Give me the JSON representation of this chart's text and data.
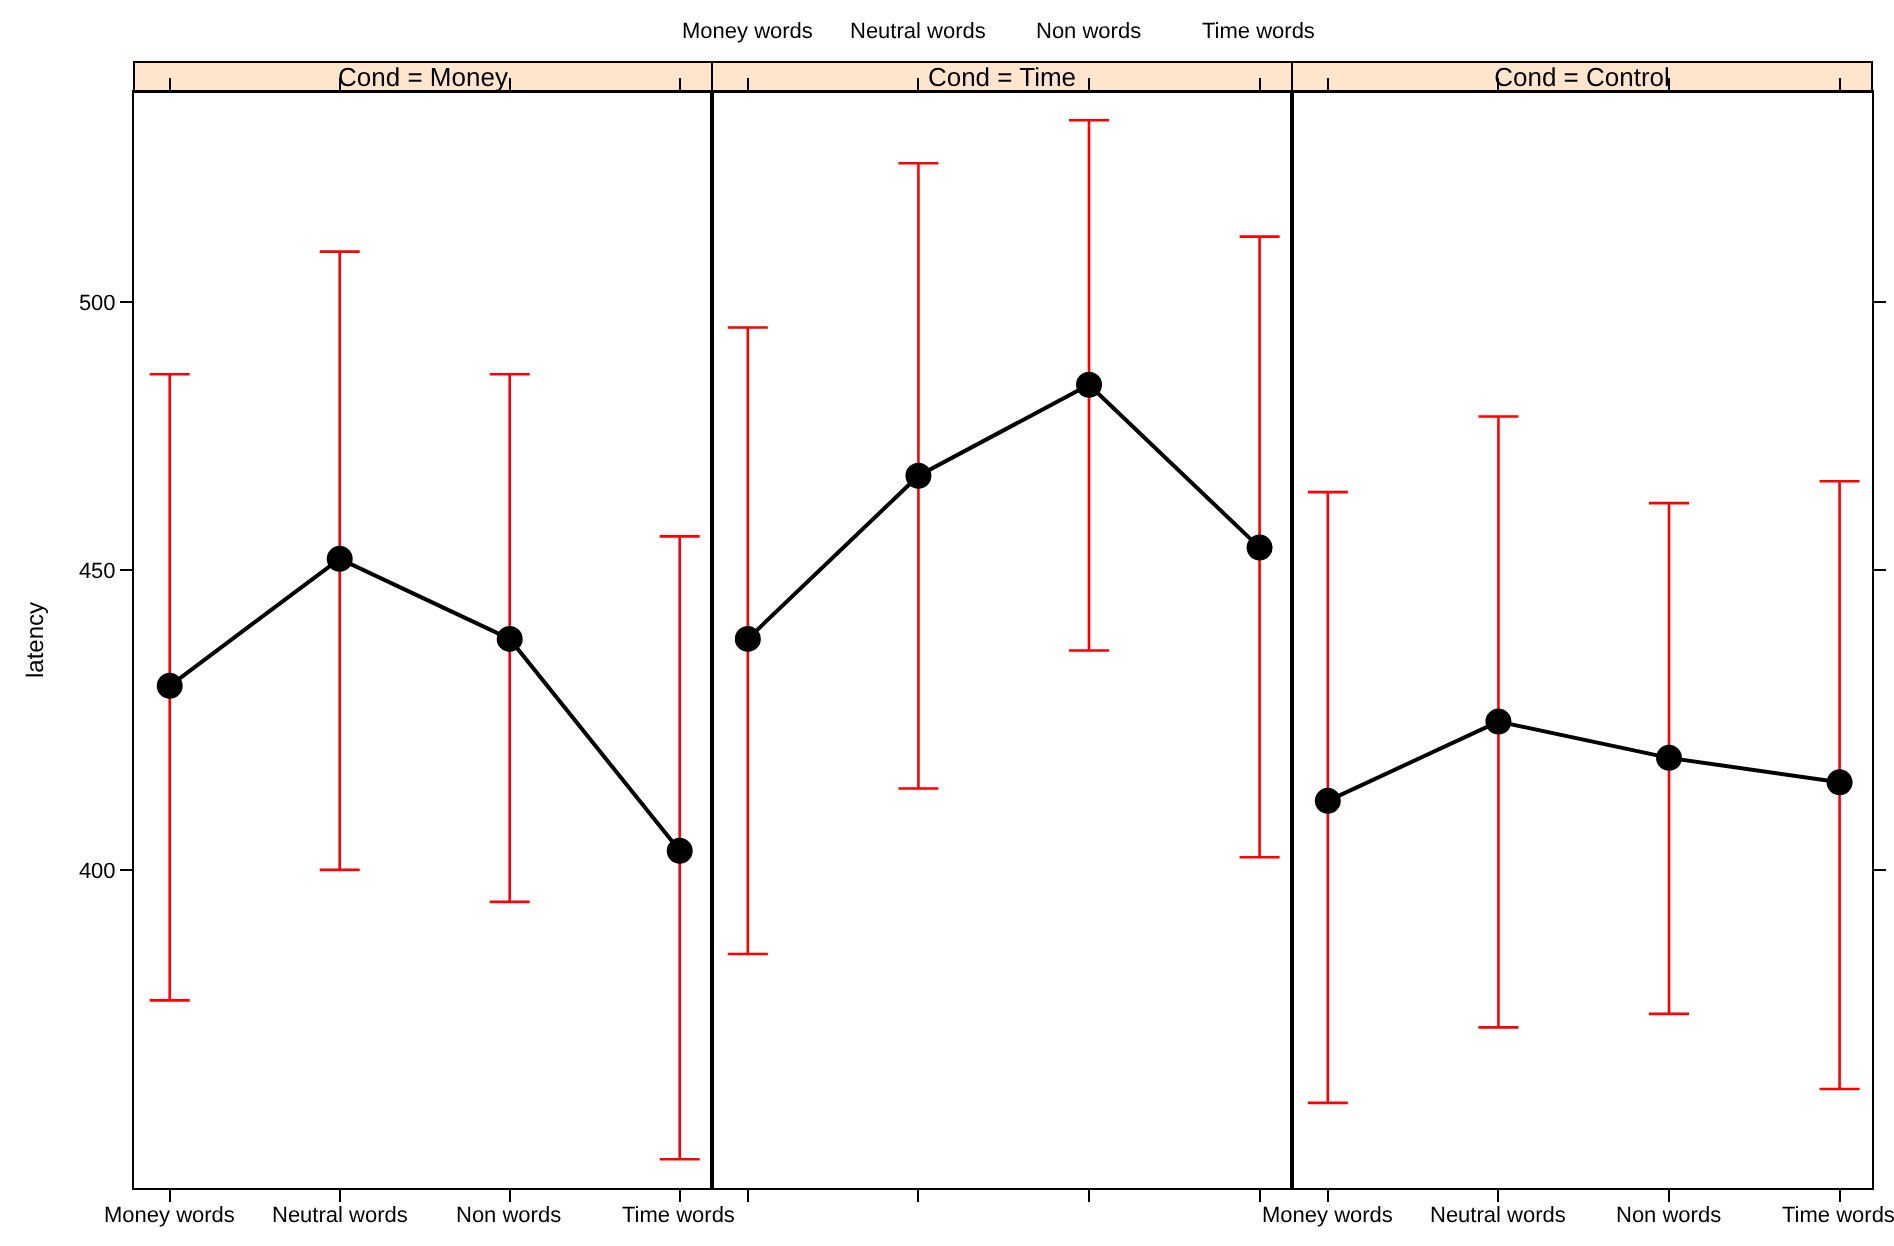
{
  "chart_data": [
    {
      "type": "line",
      "title": "Cond = Money",
      "ylabel": "latency",
      "categories": [
        "Money words",
        "Neutral words",
        "Non words",
        "Time words"
      ],
      "series": [
        {
          "color": "#000000",
          "values": [
            430,
            452,
            438,
            403
          ],
          "errors": [
            [
              380,
              486
            ],
            [
              400,
              510
            ],
            [
              395,
              486
            ],
            [
              357,
              456
            ]
          ]
        }
      ],
      "log": "y",
      "ylim": [
        353,
        543
      ],
      "yticks": [
        400,
        450,
        500
      ],
      "marker": "circle"
    },
    {
      "type": "line",
      "title": "Cond = Time",
      "categories": [
        "Money words",
        "Neutral words",
        "Non words",
        "Time words"
      ],
      "series": [
        {
          "color": "#000000",
          "values": [
            438,
            467,
            484,
            454
          ],
          "errors": [
            [
              387,
              495
            ],
            [
              413,
              528
            ],
            [
              436,
              537
            ],
            [
              402,
              513
            ]
          ]
        }
      ],
      "log": "y",
      "ylim": [
        353,
        543
      ],
      "yticks": [
        400,
        450,
        500
      ],
      "tick_labels": "x",
      "marker": "circle"
    },
    {
      "type": "line",
      "title": "Cond = Control",
      "categories": [
        "Money words",
        "Neutral words",
        "Non words",
        "Time words"
      ],
      "series": [
        {
          "color": "#000000",
          "values": [
            411,
            424,
            418,
            414
          ],
          "errors": [
            [
              365,
              464
            ],
            [
              376,
              478
            ],
            [
              378,
              462
            ],
            [
              367,
              466
            ]
          ]
        }
      ],
      "log": "y",
      "ylim": [
        353,
        543
      ],
      "yticks": [
        400,
        450,
        500
      ],
      "tick_labels": "x",
      "marker": "circle"
    }
  ]
}
